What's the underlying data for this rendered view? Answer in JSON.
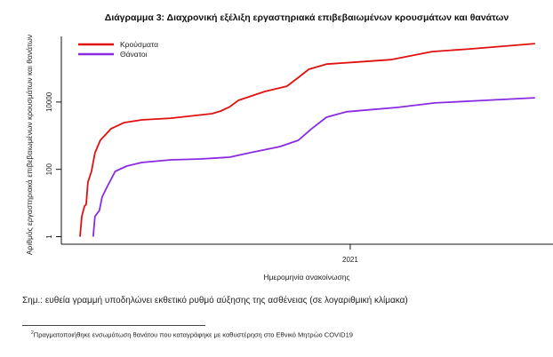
{
  "chart_data": {
    "type": "line",
    "title": "Διάγραμμα 3: Διαχρονική εξέλιξη εργαστηριακά επιβεβαιωμένων κρουσμάτων και θανάτων",
    "xlabel": "Ημερομηνία ανακοίνωσης",
    "ylabel": "Αριθμός εργαστηριακά επιβεβαιωμένων κρουσμάτων και θανάτων",
    "yscale": "log",
    "ylim": [
      0.8,
      1000000
    ],
    "yticks": [
      {
        "value": 1,
        "label": "1"
      },
      {
        "value": 100,
        "label": "100"
      },
      {
        "value": 10000,
        "label": "10000"
      }
    ],
    "x_unit": "days",
    "xlim": [
      0,
      517
    ],
    "xticks": [
      {
        "value": 307,
        "label": "2021"
      }
    ],
    "legend_position": "top-left",
    "series": [
      {
        "name": "Κρούσματα",
        "color": "#e01010",
        "x": [
          0,
          2,
          5,
          7,
          9,
          13,
          17,
          23,
          35,
          50,
          70,
          103,
          150,
          160,
          170,
          180,
          210,
          235,
          247,
          260,
          280,
          310,
          353,
          400,
          443,
          517
        ],
        "values": [
          1,
          4,
          8,
          9,
          42,
          87,
          310,
          730,
          1600,
          2450,
          2950,
          3300,
          4500,
          5400,
          7200,
          11200,
          20600,
          29500,
          51000,
          94000,
          134000,
          151000,
          181000,
          315000,
          379000,
          545000
        ]
      },
      {
        "name": "Θάνατοι",
        "color": "#8a2be2",
        "x": [
          15,
          17,
          22,
          25,
          32,
          40,
          53,
          70,
          103,
          137,
          170,
          193,
          227,
          248,
          263,
          280,
          303,
          360,
          403,
          460,
          517
        ],
        "values": [
          1,
          4,
          6,
          15,
          35,
          87,
          125,
          160,
          192,
          204,
          230,
          311,
          475,
          730,
          1600,
          3530,
          5150,
          6900,
          9400,
          11200,
          13400
        ]
      }
    ]
  },
  "note": "Σημ.: ευθεία γραμμή υποδηλώνει εκθετικό ρυθμό αύξησης της ασθένειας (σε λογαριθμική κλίμακα)",
  "footnote": {
    "marker": "2",
    "text": "Πραγματοποιήθηκε ενσωμάτωση θανάτου που καταγράφηκε με καθυστέρηση στο Εθνικό Μητρώο COVID19"
  }
}
